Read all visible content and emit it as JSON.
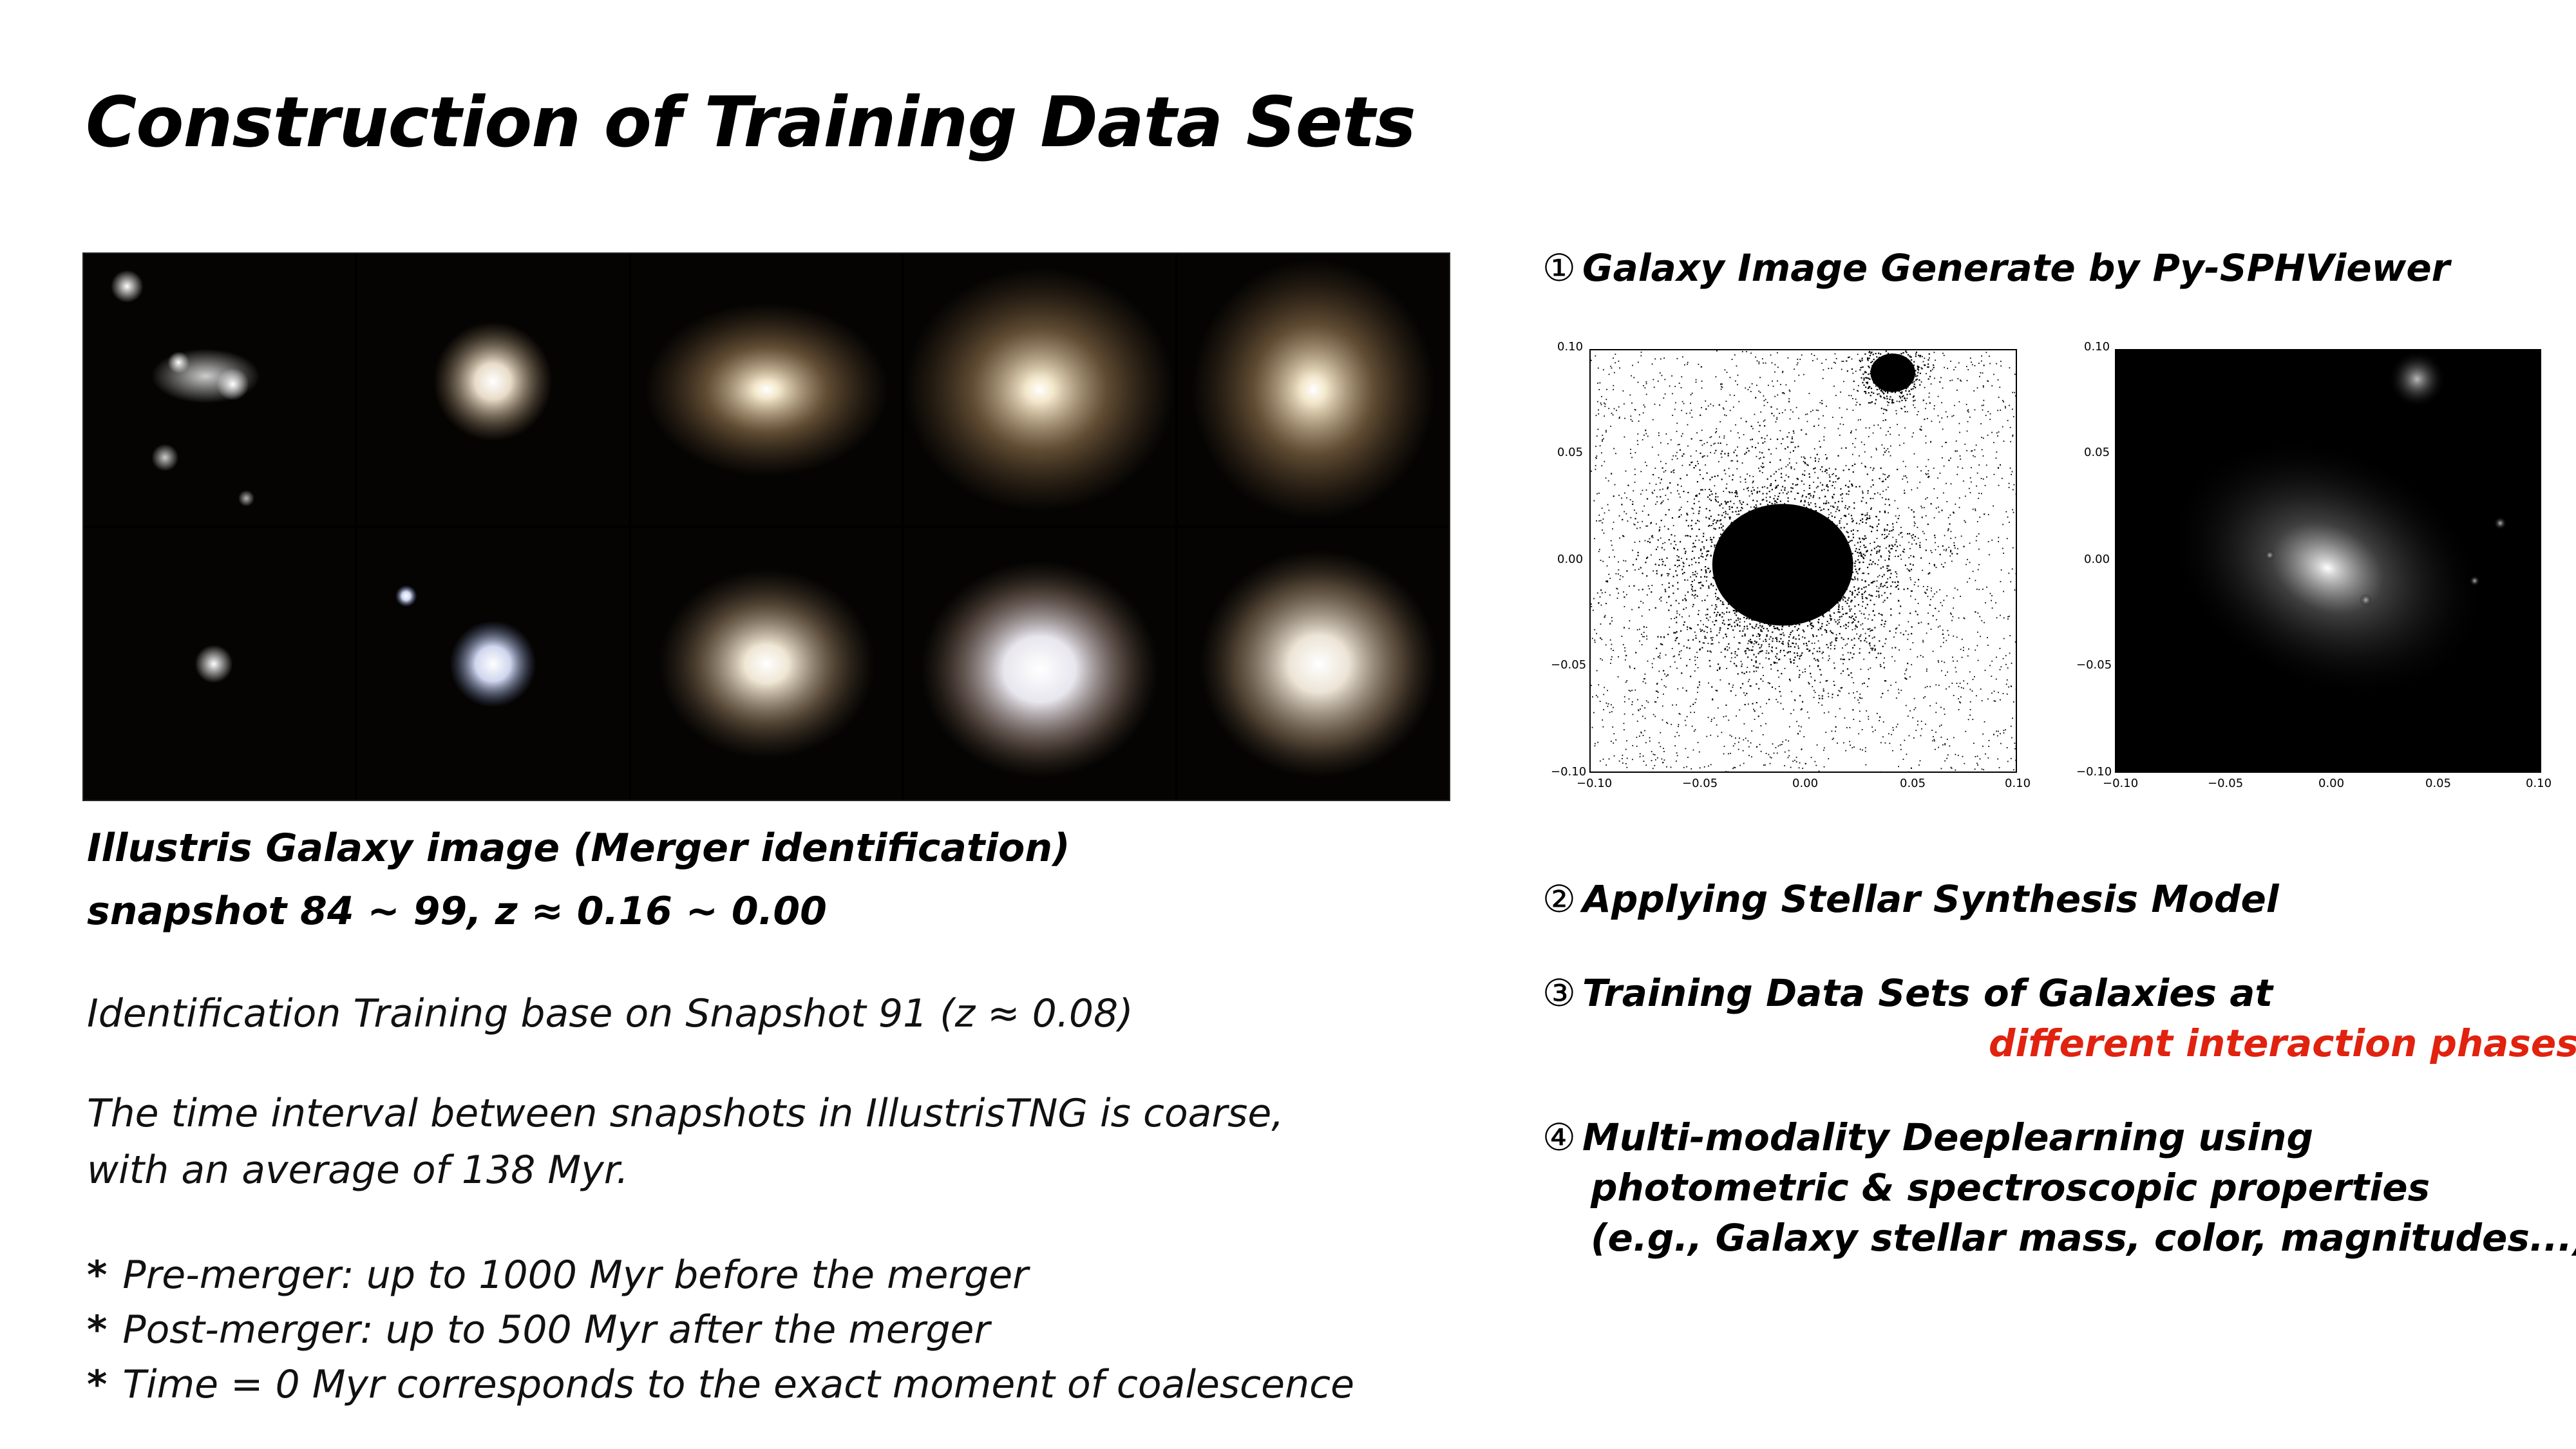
{
  "title": "Construction of Training Data Sets",
  "left": {
    "caption_line1": "Illustris Galaxy image (Merger identification)",
    "caption_line2": "snapshot 84 ~ 99, z ≈ 0.16 ~ 0.00",
    "identification": "Identification Training base on Snapshot 91 (z ≈ 0.08)",
    "interval_line1": "The time interval between snapshots in IllustrisTNG is coarse,",
    "interval_line2": "with an average of 138 Myr.",
    "bullets": [
      "Pre-merger: up to 1000 Myr before the merger",
      "Post-merger: up to 500 Myr after the merger",
      "Time = 0 Myr corresponds to the exact moment of coalescence"
    ],
    "bullet_marker": "*"
  },
  "right": {
    "step1": {
      "num": "①",
      "text": "Galaxy Image Generate by Py-SPHViewer"
    },
    "step2": {
      "num": "②",
      "text": "Applying Stellar Synthesis Model"
    },
    "step3": {
      "num": "③",
      "text": "Training Data Sets of Galaxies at",
      "highlight": "different interaction phases"
    },
    "step4": {
      "num": "④",
      "line1": "Multi-modality Deeplearning using",
      "line2": "photometric & spectroscopic properties",
      "line3": "(e.g., Galaxy stellar mass, color, magnitudes...)"
    }
  },
  "plots": {
    "ticks": [
      "0.10",
      "0.05",
      "0.00",
      "−0.05",
      "−0.10"
    ],
    "xticks": [
      "−0.10",
      "−0.05",
      "0.00",
      "0.05",
      "0.10"
    ]
  },
  "colors": {
    "highlight": "#e0220f",
    "grid_bg": "#000000"
  }
}
